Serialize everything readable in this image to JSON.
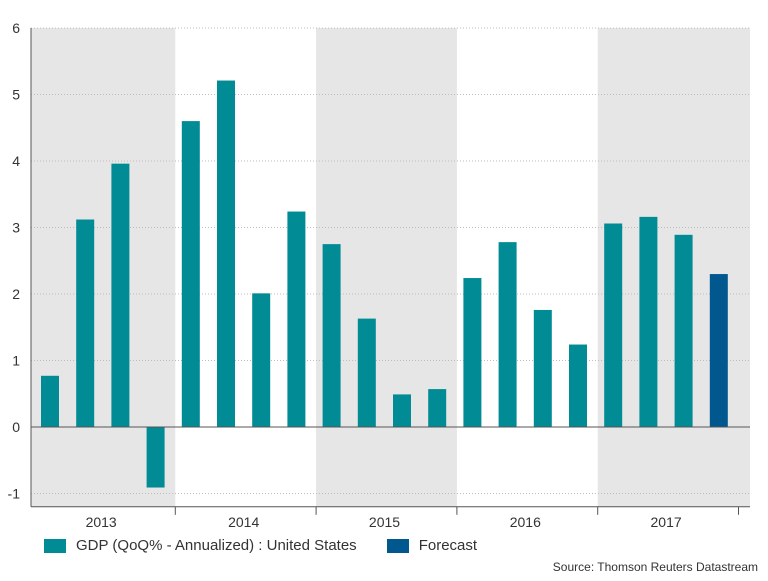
{
  "chart_data": {
    "type": "bar",
    "title": "",
    "xlabel": "",
    "ylabel": "",
    "ylim": [
      -1.2,
      6
    ],
    "yticks": [
      -1,
      0,
      1,
      2,
      3,
      4,
      5,
      6
    ],
    "years": [
      "2013",
      "2014",
      "2015",
      "2016",
      "2017"
    ],
    "shaded_years": [
      "2013",
      "2015",
      "2017"
    ],
    "grid": true,
    "series": [
      {
        "name": "GDP (QoQ% - Annualized) : United States",
        "color": "#008b95",
        "values": [
          0.77,
          3.12,
          3.96,
          -0.91,
          4.6,
          5.21,
          2.01,
          3.24,
          2.75,
          1.63,
          0.49,
          0.57,
          2.24,
          2.78,
          1.76,
          1.24,
          3.06,
          3.16,
          2.89
        ]
      },
      {
        "name": "Forecast",
        "color": "#00588e",
        "values": [
          null,
          null,
          null,
          null,
          null,
          null,
          null,
          null,
          null,
          null,
          null,
          null,
          null,
          null,
          null,
          null,
          null,
          null,
          null,
          2.3
        ]
      }
    ]
  },
  "legend": {
    "gdp_label": "GDP (QoQ% - Annualized) : United States",
    "forecast_label": "Forecast"
  },
  "source": "Source: Thomson Reuters Datastream"
}
